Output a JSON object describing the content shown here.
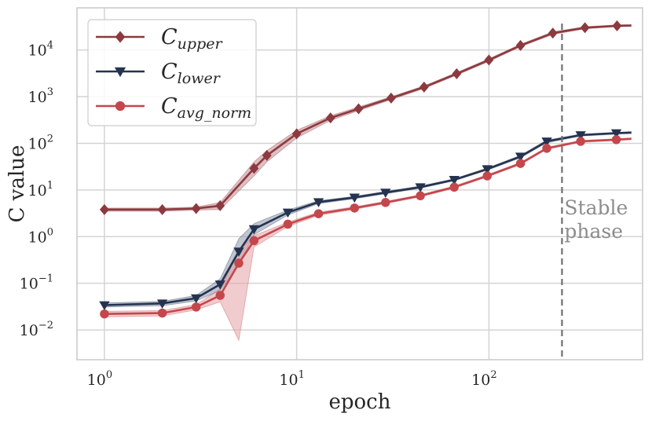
{
  "chart_data": {
    "type": "line",
    "xscale": "log",
    "yscale": "log",
    "xlim": [
      0.72,
      630
    ],
    "ylim": [
      0.0023,
      80000
    ],
    "xlabel": "epoch",
    "ylabel": "C value",
    "xticks": [
      {
        "value": 1,
        "base": "10",
        "exp": "0"
      },
      {
        "value": 10,
        "base": "10",
        "exp": "1"
      },
      {
        "value": 100,
        "base": "10",
        "exp": "2"
      }
    ],
    "yticks": [
      {
        "value": 0.01,
        "base": "10",
        "exp": "−2"
      },
      {
        "value": 0.1,
        "base": "10",
        "exp": "−1"
      },
      {
        "value": 1,
        "base": "10",
        "exp": "0"
      },
      {
        "value": 10,
        "base": "10",
        "exp": "1"
      },
      {
        "value": 100,
        "base": "10",
        "exp": "2"
      },
      {
        "value": 1000,
        "base": "10",
        "exp": "3"
      },
      {
        "value": 10000,
        "base": "10",
        "exp": "4"
      }
    ],
    "grid": true,
    "legend_position": "top-left",
    "annotation": {
      "line1": "Stable",
      "line2": "phase",
      "x": 240
    },
    "series": [
      {
        "name": "C",
        "sub": "upper",
        "marker": "diamond",
        "color": "#8c3a3f",
        "x": [
          1,
          2,
          3,
          4,
          6,
          7,
          10,
          15,
          21,
          31,
          46,
          68,
          100,
          146,
          215,
          316,
          464,
          550
        ],
        "y": [
          3.8,
          3.8,
          4.0,
          4.6,
          29,
          55,
          160,
          350,
          550,
          930,
          1600,
          3100,
          6100,
          12500,
          23000,
          30000,
          33000,
          33500
        ],
        "band_lo": [
          3.5,
          3.5,
          3.7,
          3.8,
          20,
          40,
          130,
          310,
          500,
          860,
          1500,
          2900,
          5700,
          11800,
          21500,
          28500,
          31500,
          32000
        ],
        "band_hi": [
          4.1,
          4.1,
          4.3,
          5.4,
          40,
          70,
          190,
          390,
          600,
          1000,
          1700,
          3300,
          6500,
          13200,
          24500,
          31500,
          34500,
          35000
        ],
        "band_color": "#c28a90"
      },
      {
        "name": "C",
        "sub": "lower",
        "marker": "triangle-down",
        "color": "#24334f",
        "x": [
          1,
          2,
          3,
          4,
          5,
          6,
          9,
          13,
          20,
          29,
          44,
          66,
          98,
          146,
          200,
          300,
          460,
          550
        ],
        "y": [
          0.034,
          0.037,
          0.048,
          0.095,
          0.48,
          1.45,
          3.3,
          5.5,
          6.9,
          8.8,
          11.5,
          16.5,
          28,
          52,
          110,
          150,
          165,
          170
        ],
        "band_lo": [
          0.031,
          0.033,
          0.042,
          0.07,
          0.25,
          1.1,
          2.9,
          5.1,
          6.5,
          8.3,
          10.9,
          15.7,
          26.5,
          49,
          103,
          143,
          158,
          162
        ],
        "band_hi": [
          0.038,
          0.041,
          0.055,
          0.125,
          0.9,
          1.9,
          3.7,
          5.9,
          7.3,
          9.3,
          12.1,
          17.3,
          29.5,
          55,
          117,
          157,
          172,
          178
        ],
        "band_color": "#8c97ab"
      },
      {
        "name": "C",
        "sub": "avg_norm",
        "marker": "circle",
        "color": "#c4474c",
        "x": [
          1,
          2,
          3,
          4,
          5,
          6,
          9,
          13,
          20,
          29,
          44,
          66,
          98,
          146,
          200,
          300,
          460,
          550
        ],
        "y": [
          0.022,
          0.023,
          0.031,
          0.055,
          0.27,
          0.82,
          1.85,
          3.1,
          4.1,
          5.4,
          7.5,
          11.5,
          20,
          37,
          78,
          110,
          120,
          125
        ],
        "band_lo": [
          0.019,
          0.02,
          0.027,
          0.04,
          0.006,
          0.6,
          1.65,
          2.85,
          3.85,
          5.1,
          7.1,
          10.9,
          19,
          35,
          74,
          105,
          115,
          120
        ],
        "band_hi": [
          0.025,
          0.026,
          0.035,
          0.075,
          0.5,
          1.05,
          2.05,
          3.35,
          4.35,
          5.7,
          7.9,
          12.1,
          21,
          39,
          82,
          115,
          125,
          130
        ],
        "band_color": "#e3a2a6"
      }
    ]
  }
}
